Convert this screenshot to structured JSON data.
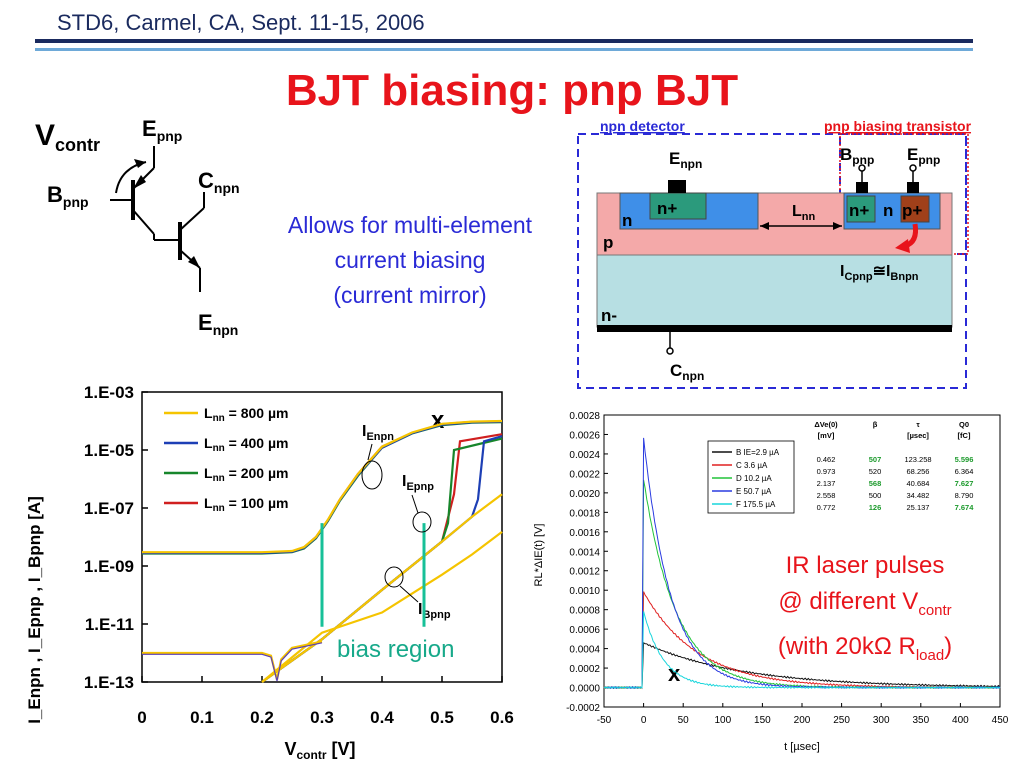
{
  "header": {
    "text": "STD6, Carmel, CA, Sept. 11-15, 2006"
  },
  "title": "BJT biasing: pnp BJT",
  "colors": {
    "navy": "#1a2a5e",
    "title_red": "#e8141b",
    "note_blue": "#2a2ad6",
    "accent_blue": "#6ea9d8"
  },
  "schematic": {
    "vcontr": {
      "main": "V",
      "sub": "contr"
    },
    "epnp": {
      "main": "E",
      "sub": "pnp"
    },
    "bpnp": {
      "main": "B",
      "sub": "pnp"
    },
    "cnpn": {
      "main": "C",
      "sub": "npn"
    },
    "enpn": {
      "main": "E",
      "sub": "npn"
    }
  },
  "note": {
    "lines": [
      "Allows for multi-element",
      "current biasing",
      "(current mirror)"
    ]
  },
  "device": {
    "npn_detector_label": "npn detector",
    "pnp_bias_label": "pnp biasing transistor",
    "enpn": {
      "main": "E",
      "sub": "npn"
    },
    "bpnp": {
      "main": "B",
      "sub": "pnp"
    },
    "epnp": {
      "main": "E",
      "sub": "pnp"
    },
    "cnpn": {
      "main": "C",
      "sub": "npn"
    },
    "lnn": {
      "main": "L",
      "sub": "nn"
    },
    "nplus": "n+",
    "pplus": "p+",
    "n_label": "n",
    "p_label": "p",
    "nminus": "n-",
    "current_rel": {
      "a_main": "I",
      "a_sub": "Cpnp",
      "rel": "≅",
      "b_main": "I",
      "b_sub": "Bnpn"
    }
  },
  "iv_chart": {
    "xlabel": {
      "main": "V",
      "sub": "contr",
      "unit": " [V]"
    },
    "ylabel": "I_Enpn , I_Epnp , I_Bpnp [A]",
    "bias_region_label": "bias region",
    "x_marker": "x",
    "curve_labels": {
      "ienpn": {
        "main": "I",
        "sub": "Enpn"
      },
      "iepnp": {
        "main": "I",
        "sub": "Epnp"
      },
      "ibpnp": {
        "main": "I",
        "sub": "Bpnp"
      }
    }
  },
  "pulse_chart": {
    "xlabel": "t   [µsec]",
    "ylabel": "RL*ΔIE(t)   [V]",
    "x_marker": "x",
    "table_header": [
      "ΔVe(0)",
      "β",
      "τ",
      "Q0"
    ],
    "table_units": [
      "[mV]",
      "",
      "[µsec]",
      "[fC]"
    ],
    "table_rows": [
      [
        "0.462",
        "507",
        "123.258",
        "5.596"
      ],
      [
        "0.973",
        "520",
        "68.256",
        "6.364"
      ],
      [
        "2.137",
        "568",
        "40.684",
        "7.627"
      ],
      [
        "2.558",
        "500",
        "34.482",
        "8.790"
      ],
      [
        "0.772",
        "126",
        "25.137",
        "7.674"
      ]
    ],
    "table_green": [
      [
        0,
        1
      ],
      [
        0,
        3
      ],
      [
        2,
        1
      ],
      [
        2,
        3
      ],
      [
        4,
        1
      ],
      [
        4,
        3
      ]
    ]
  },
  "ir_note": {
    "line1": "IR laser pulses",
    "line2_pre": "@ different V",
    "line2_sub": "contr",
    "line3_pre": "(with 20kΩ R",
    "line3_sub": "load",
    "line3_post": ")"
  },
  "chart_data": [
    {
      "type": "line",
      "title": "",
      "xlabel": "V_contr [V]",
      "ylabel": "I_Enpn , I_Epnp , I_Bpnp [A]",
      "xlim": [
        0,
        0.6
      ],
      "ylim": [
        1e-13,
        0.001
      ],
      "yscale": "log",
      "xticks": [
        "0",
        "0.1",
        "0.2",
        "0.3",
        "0.4",
        "0.5",
        "0.6"
      ],
      "yticks": [
        "1.E-03",
        "1.E-05",
        "1.E-07",
        "1.E-09",
        "1.E-11",
        "1.E-13"
      ],
      "grid": false,
      "legend_placement": "top-left",
      "series": [
        {
          "name": "L_nn = 800 µm",
          "color": "#f5c400",
          "legend_main": "L",
          "legend_sub": "nn",
          "legend_rest": " = 800 µm",
          "enpn": {
            "x": [
              0.0,
              0.2,
              0.25,
              0.27,
              0.29,
              0.31,
              0.33,
              0.36,
              0.4,
              0.45,
              0.5,
              0.55,
              0.6
            ],
            "y": [
              3e-09,
              3e-09,
              3.3e-09,
              4.5e-09,
              1e-08,
              4e-08,
              2e-07,
              1.5e-06,
              1.3e-05,
              4e-05,
              8e-05,
              9.5e-05,
              0.0001
            ]
          },
          "epnp": {
            "x": [
              0.2,
              0.3,
              0.4,
              0.5,
              0.55,
              0.6
            ],
            "y": [
              1e-13,
              3e-12,
              1.5e-10,
              7e-09,
              5e-08,
              3e-07
            ]
          },
          "bpnp": {
            "x": [
              0.2,
              0.3,
              0.4,
              0.5,
              0.55,
              0.6
            ],
            "y": [
              1e-13,
              5e-12,
              2.5e-11,
              5e-10,
              2.5e-09,
              1.5e-08
            ]
          }
        },
        {
          "name": "L_nn = 400 µm",
          "color": "#1d3fb5",
          "legend_main": "L",
          "legend_sub": "nn",
          "legend_rest": " = 400 µm",
          "enpn": {
            "x": [
              0.0,
              0.2,
              0.25,
              0.27,
              0.29,
              0.31,
              0.33,
              0.36,
              0.4,
              0.45,
              0.5,
              0.55,
              0.6
            ],
            "y": [
              2.8e-09,
              2.8e-09,
              3.1e-09,
              4.2e-09,
              9.5e-09,
              3.8e-08,
              1.9e-07,
              1.4e-06,
              1.2e-05,
              3.8e-05,
              7.5e-05,
              9e-05,
              9.5e-05
            ]
          },
          "epnp": {
            "x": [
              0.2,
              0.3,
              0.4,
              0.5,
              0.55,
              0.56,
              0.57,
              0.6
            ],
            "y": [
              1e-13,
              3e-12,
              1.5e-10,
              7e-09,
              5e-08,
              2e-07,
              2e-05,
              3e-05
            ]
          }
        },
        {
          "name": "L_nn = 200 µm",
          "color": "#17862b",
          "legend_main": "L",
          "legend_sub": "nn",
          "legend_rest": " = 200 µm",
          "enpn": {
            "x": [
              0.0,
              0.2,
              0.25,
              0.27,
              0.29,
              0.31,
              0.33,
              0.36,
              0.4,
              0.45,
              0.5,
              0.55,
              0.6
            ],
            "y": [
              2.7e-09,
              2.7e-09,
              3e-09,
              4e-09,
              9e-09,
              3.6e-08,
              1.8e-07,
              1.3e-06,
              1.2e-05,
              3.7e-05,
              7.2e-05,
              8.8e-05,
              9.2e-05
            ]
          },
          "epnp": {
            "x": [
              0.2,
              0.3,
              0.4,
              0.5,
              0.51,
              0.52,
              0.6
            ],
            "y": [
              1e-13,
              3e-12,
              1.5e-10,
              7e-09,
              3e-08,
              1e-05,
              2.5e-05
            ]
          }
        },
        {
          "name": "L_nn = 100 µm",
          "color": "#d01f1f",
          "legend_main": "L",
          "legend_sub": "nn",
          "legend_rest": " = 100 µm",
          "enpn": {
            "x": [
              0.0,
              0.2,
              0.25,
              0.27,
              0.29,
              0.31,
              0.33,
              0.36,
              0.4,
              0.45,
              0.5,
              0.55,
              0.6
            ],
            "y": [
              2.9e-09,
              2.9e-09,
              3.2e-09,
              4.4e-09,
              1e-08,
              3.9e-08,
              2e-07,
              1.5e-06,
              1.3e-05,
              3.9e-05,
              7.8e-05,
              9.3e-05,
              9.8e-05
            ]
          },
          "epnp": {
            "x": [
              0.2,
              0.3,
              0.4,
              0.5,
              0.52,
              0.53,
              0.6
            ],
            "y": [
              1e-13,
              3e-12,
              1.5e-10,
              7e-09,
              3e-07,
              2e-05,
              3.5e-05
            ]
          }
        }
      ],
      "bias_lines": [
        0.3,
        0.47
      ]
    },
    {
      "type": "line",
      "title": "",
      "xlabel": "t   [µsec]",
      "ylabel": "RL*ΔIE(t)   [V]",
      "xlim": [
        -50,
        450
      ],
      "ylim": [
        -0.0002,
        0.0028
      ],
      "xticks": [
        "-50",
        "0",
        "50",
        "100",
        "150",
        "200",
        "250",
        "300",
        "350",
        "400",
        "450"
      ],
      "yticks": [
        "0.0028",
        "0.0026",
        "0.0024",
        "0.0022",
        "0.0020",
        "0.0018",
        "0.0016",
        "0.0014",
        "0.0012",
        "0.0010",
        "0.0008",
        "0.0006",
        "0.0004",
        "0.0002",
        "0.0000",
        "-0.0002"
      ],
      "grid": false,
      "legend_placement": "top-center",
      "series": [
        {
          "name": "B   IE=2.9 µA",
          "color": "#111111",
          "peak": 0.00046,
          "tau": 123.258
        },
        {
          "name": "C   3.6 µA",
          "color": "#e02020",
          "peak": 0.00098,
          "tau": 68.256
        },
        {
          "name": "D   10.2 µA",
          "color": "#22c43a",
          "peak": 0.00214,
          "tau": 40.684
        },
        {
          "name": "E   50.7 µA",
          "color": "#2a3be0",
          "peak": 0.00256,
          "tau": 34.482
        },
        {
          "name": "F   175.5 µA",
          "color": "#19d6dc",
          "peak": 0.00078,
          "tau": 25.137
        }
      ]
    }
  ]
}
